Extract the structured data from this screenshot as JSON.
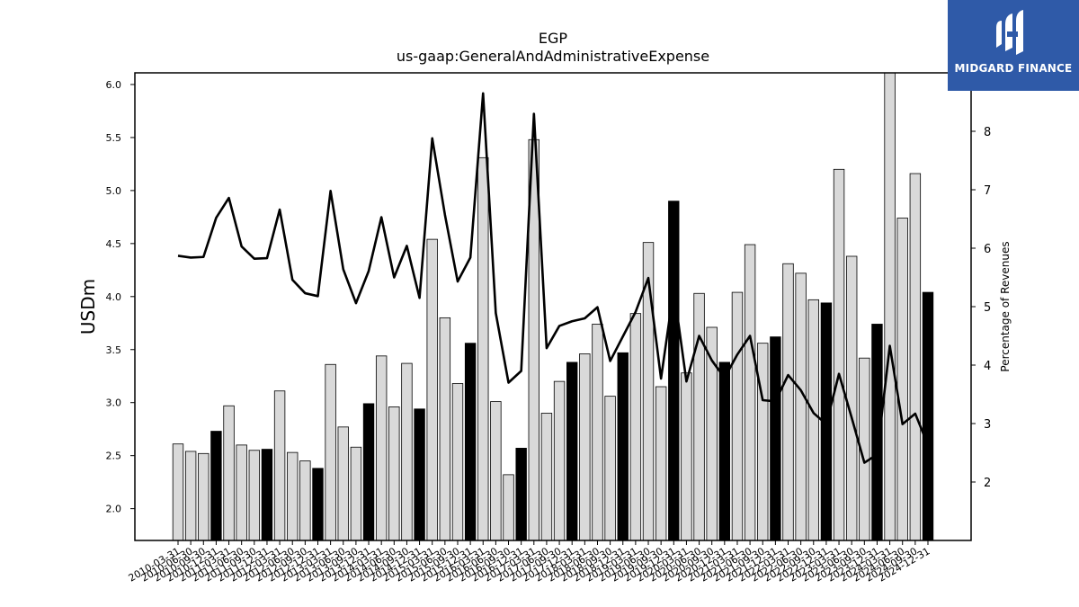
{
  "chart_data": {
    "type": "bar",
    "title": "EGP",
    "subtitle": "us-gaap:GeneralAndAdministrativeExpense",
    "ylabel": "USDm",
    "y2label": "Percentage of Revenues",
    "ylim": [
      1.7,
      6.11
    ],
    "y2lim": [
      1.0,
      9.0
    ],
    "yticks": [
      2.0,
      2.5,
      3.0,
      3.5,
      4.0,
      4.5,
      5.0,
      5.5,
      6.0
    ],
    "y2ticks": [
      2,
      3,
      4,
      5,
      6,
      7,
      8
    ],
    "x": [
      "2010-03-31",
      "2010-06-30",
      "2010-09-30",
      "2010-12-31",
      "2011-03-31",
      "2011-06-30",
      "2011-09-30",
      "2011-12-31",
      "2012-03-31",
      "2012-06-30",
      "2012-09-30",
      "2012-12-31",
      "2013-03-31",
      "2013-06-30",
      "2013-09-30",
      "2013-12-31",
      "2014-03-31",
      "2014-06-30",
      "2014-09-30",
      "2014-12-31",
      "2015-03-31",
      "2015-06-30",
      "2015-09-30",
      "2015-12-31",
      "2016-03-31",
      "2016-06-30",
      "2016-09-30",
      "2016-12-31",
      "2017-03-31",
      "2017-06-30",
      "2017-09-30",
      "2017-12-31",
      "2018-03-31",
      "2018-06-30",
      "2018-09-30",
      "2018-12-31",
      "2019-03-31",
      "2019-06-30",
      "2019-09-30",
      "2019-12-31",
      "2020-03-31",
      "2020-06-30",
      "2020-09-30",
      "2020-12-31",
      "2021-03-31",
      "2021-06-30",
      "2021-09-30",
      "2021-12-31",
      "2022-03-31",
      "2022-06-30",
      "2022-09-30",
      "2022-12-31",
      "2023-03-31",
      "2023-06-30",
      "2023-09-30",
      "2023-12-31",
      "2024-03-31",
      "2024-06-30",
      "2024-09-30",
      "2024-12-31"
    ],
    "series": [
      {
        "values": [
          2.61,
          2.54,
          2.52,
          2.73,
          2.97,
          2.6,
          2.55,
          2.56,
          3.11,
          2.53,
          2.45,
          2.38,
          3.36,
          2.77,
          2.58,
          2.99,
          3.44,
          2.96,
          3.37,
          2.94,
          4.54,
          3.8,
          3.18,
          3.56,
          5.31,
          3.01,
          2.32,
          2.57,
          5.48,
          2.9,
          3.2,
          3.38,
          3.46,
          3.74,
          3.06,
          3.47,
          3.84,
          4.51,
          3.15,
          4.9,
          3.28,
          4.03,
          3.71,
          3.38,
          4.04,
          4.49,
          3.56,
          3.62,
          4.31,
          4.22,
          3.97,
          3.94,
          5.2,
          4.38,
          3.42,
          3.74,
          6.11,
          4.74,
          5.16,
          4.04
        ],
        "highlight": [
          false,
          false,
          false,
          true,
          false,
          false,
          false,
          true,
          false,
          false,
          false,
          true,
          false,
          false,
          false,
          true,
          false,
          false,
          false,
          true,
          false,
          false,
          false,
          true,
          false,
          false,
          false,
          true,
          false,
          false,
          false,
          true,
          false,
          false,
          false,
          true,
          false,
          false,
          false,
          true,
          false,
          false,
          false,
          true,
          false,
          false,
          false,
          true,
          false,
          false,
          false,
          true,
          false,
          false,
          false,
          true,
          false,
          false,
          false,
          true
        ],
        "colors": {
          "bar": "#d9d9d9",
          "highlight_bar": "#000000"
        }
      },
      {
        "axis": "right",
        "type": "line",
        "values": [
          5.87,
          5.84,
          5.85,
          6.52,
          6.86,
          6.03,
          5.82,
          5.83,
          6.66,
          5.46,
          5.23,
          5.18,
          6.98,
          5.64,
          5.06,
          5.61,
          6.53,
          5.5,
          6.04,
          5.15,
          7.88,
          6.57,
          5.43,
          5.84,
          8.65,
          4.89,
          3.7,
          3.9,
          8.3,
          4.29,
          4.67,
          4.75,
          4.8,
          4.99,
          4.07,
          4.49,
          4.91,
          5.49,
          3.77,
          5.3,
          3.72,
          4.5,
          4.08,
          3.78,
          4.18,
          4.5,
          3.4,
          3.38,
          3.83,
          3.57,
          3.18,
          2.99,
          3.85,
          3.1,
          2.33,
          2.47,
          4.33,
          2.99,
          3.17,
          2.63
        ],
        "colors": {
          "line": "#000000"
        }
      }
    ],
    "grid": false
  },
  "logo": {
    "brand": "MIDGARD FINANCE",
    "colors": {
      "background": "#2f5aa8"
    }
  }
}
